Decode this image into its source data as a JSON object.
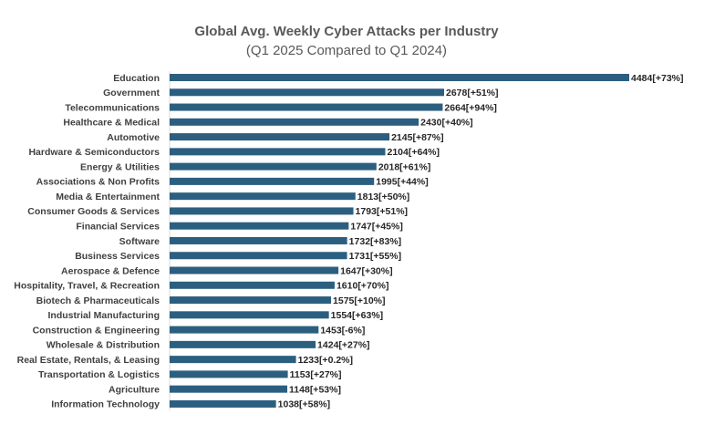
{
  "chart_data": {
    "type": "bar",
    "orientation": "horizontal",
    "title": "Global Avg. Weekly Cyber Attacks per Industry",
    "subtitle": "(Q1 2025 Compared to Q1 2024)",
    "xlabel": "",
    "ylabel": "",
    "xlim": [
      0,
      4500
    ],
    "grid": false,
    "legend": "none",
    "bar_color": "#2c5f7f",
    "categories": [
      "Education",
      "Government",
      "Telecommunications",
      "Healthcare & Medical",
      "Automotive",
      "Hardware & Semiconductors",
      "Energy & Utilities",
      "Associations & Non Profits",
      "Media & Entertainment",
      "Consumer Goods & Services",
      "Financial Services",
      "Software",
      "Business Services",
      "Aerospace & Defence",
      "Hospitality, Travel, & Recreation",
      "Biotech & Pharmaceuticals",
      "Industrial Manufacturing",
      "Construction & Engineering",
      "Wholesale & Distribution",
      "Real Estate, Rentals, & Leasing",
      "Transportation & Logistics",
      "Agriculture",
      "Information Technology"
    ],
    "values": [
      4484,
      2678,
      2664,
      2430,
      2145,
      2104,
      2018,
      1995,
      1813,
      1793,
      1747,
      1732,
      1731,
      1647,
      1610,
      1575,
      1554,
      1453,
      1424,
      1233,
      1153,
      1148,
      1038
    ],
    "changes": [
      "[+73%]",
      "[+51%]",
      "[+94%]",
      "[+40%]",
      "[+87%]",
      "[+64%]",
      "[+61%]",
      "[+44%]",
      "[+50%]",
      "[+51%]",
      "[+45%]",
      "[+83%]",
      "[+55%]",
      "[+30%]",
      "[+70%]",
      "[+10%]",
      "[+63%]",
      "[-6%]",
      "[+27%]",
      "[+0.2%]",
      "[+27%]",
      "[+53%]",
      "[+58%]"
    ]
  }
}
